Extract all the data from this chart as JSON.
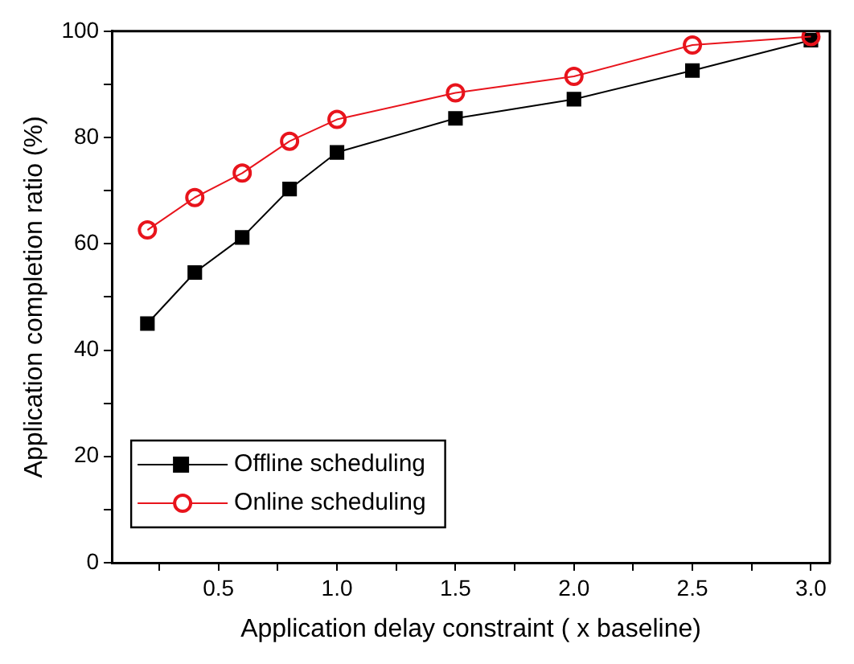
{
  "chart_data": {
    "type": "line",
    "xlabel": "Application delay constraint ( x baseline)",
    "ylabel": "Application completion ratio (%)",
    "x": [
      0.2,
      0.4,
      0.6,
      0.8,
      1.0,
      1.5,
      2.0,
      2.5,
      3.0
    ],
    "series": [
      {
        "name": "Offline scheduling",
        "color": "#000000",
        "marker": "square",
        "values": [
          45,
          54.6,
          61.2,
          70.3,
          77.2,
          83.6,
          87.2,
          92.6,
          98.3
        ]
      },
      {
        "name": "Online scheduling",
        "color": "#e8141c",
        "marker": "circle",
        "values": [
          62.6,
          68.7,
          73.3,
          79.3,
          83.4,
          88.4,
          91.5,
          97.4,
          99
        ]
      }
    ],
    "xlim": [
      0.05,
      3.08
    ],
    "xticks": [
      {
        "value": 0.25,
        "label": null
      },
      0.5,
      {
        "value": 0.75,
        "label": null
      },
      {
        "value": 1.0,
        "label": "1.0"
      },
      {
        "value": 1.25,
        "label": null
      },
      1.5,
      {
        "value": 1.75,
        "label": null
      },
      {
        "value": 2.0,
        "label": "2.0"
      },
      {
        "value": 2.25,
        "label": null
      },
      2.5,
      {
        "value": 2.75,
        "label": null
      },
      {
        "value": 3.0,
        "label": "3.0"
      }
    ],
    "ylim": [
      0,
      100
    ],
    "yticks": [
      0,
      {
        "value": 10,
        "label": null
      },
      20,
      {
        "value": 30,
        "label": null
      },
      40,
      {
        "value": 50,
        "label": null
      },
      60,
      {
        "value": 70,
        "label": null
      },
      80,
      {
        "value": 90,
        "label": null
      },
      100
    ],
    "grid": false,
    "legend": "bottom left",
    "line_style": "solid"
  }
}
